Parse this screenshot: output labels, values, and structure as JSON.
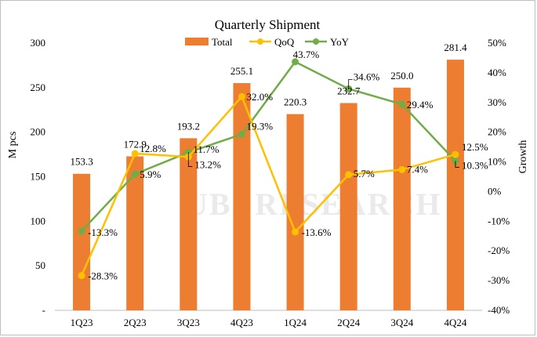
{
  "chart_data": {
    "type": "bar+line",
    "title": "Quarterly Shipment",
    "categories": [
      "1Q23",
      "2Q23",
      "3Q23",
      "4Q23",
      "1Q24",
      "2Q24",
      "3Q24",
      "4Q24"
    ],
    "series": [
      {
        "name": "Total",
        "type": "bar",
        "axis": "left",
        "color": "#ED7D31",
        "values": [
          153.3,
          172.9,
          193.2,
          255.1,
          220.3,
          232.7,
          250.0,
          281.4
        ],
        "labels": [
          "153.3",
          "172.9",
          "193.2",
          "255.1",
          "220.3",
          "232.7",
          "250.0",
          "281.4"
        ]
      },
      {
        "name": "QoQ",
        "type": "line",
        "axis": "right",
        "color": "#FFC000",
        "values": [
          -28.3,
          12.8,
          11.7,
          32.0,
          -13.6,
          5.7,
          7.4,
          12.5
        ],
        "labels": [
          "-28.3%",
          "12.8%",
          "11.7%",
          "32.0%",
          "-13.6%",
          "5.7%",
          "7.4%",
          "12.5%"
        ]
      },
      {
        "name": "YoY",
        "type": "line",
        "axis": "right",
        "color": "#70AD47",
        "values": [
          -13.3,
          5.9,
          13.2,
          19.3,
          43.7,
          34.6,
          29.4,
          10.3
        ],
        "labels": [
          "-13.3%",
          "5.9%",
          "13.2%",
          "19.3%",
          "43.7%",
          "34.6%",
          "29.4%",
          "10.3%"
        ]
      }
    ],
    "ylabel": "M pcs",
    "y2label": "Growth",
    "ylim": [
      0,
      300
    ],
    "y2lim": [
      -40,
      50
    ],
    "yticks": [
      "-",
      "50",
      "100",
      "150",
      "200",
      "250",
      "300"
    ],
    "y2ticks": [
      "-40%",
      "-30%",
      "-20%",
      "-10%",
      "0%",
      "10%",
      "20%",
      "30%",
      "40%",
      "50%"
    ],
    "legend": [
      "Total",
      "QoQ",
      "YoY"
    ],
    "legend_position": "top",
    "grid": false,
    "watermark": "UBI RESEARCH"
  }
}
